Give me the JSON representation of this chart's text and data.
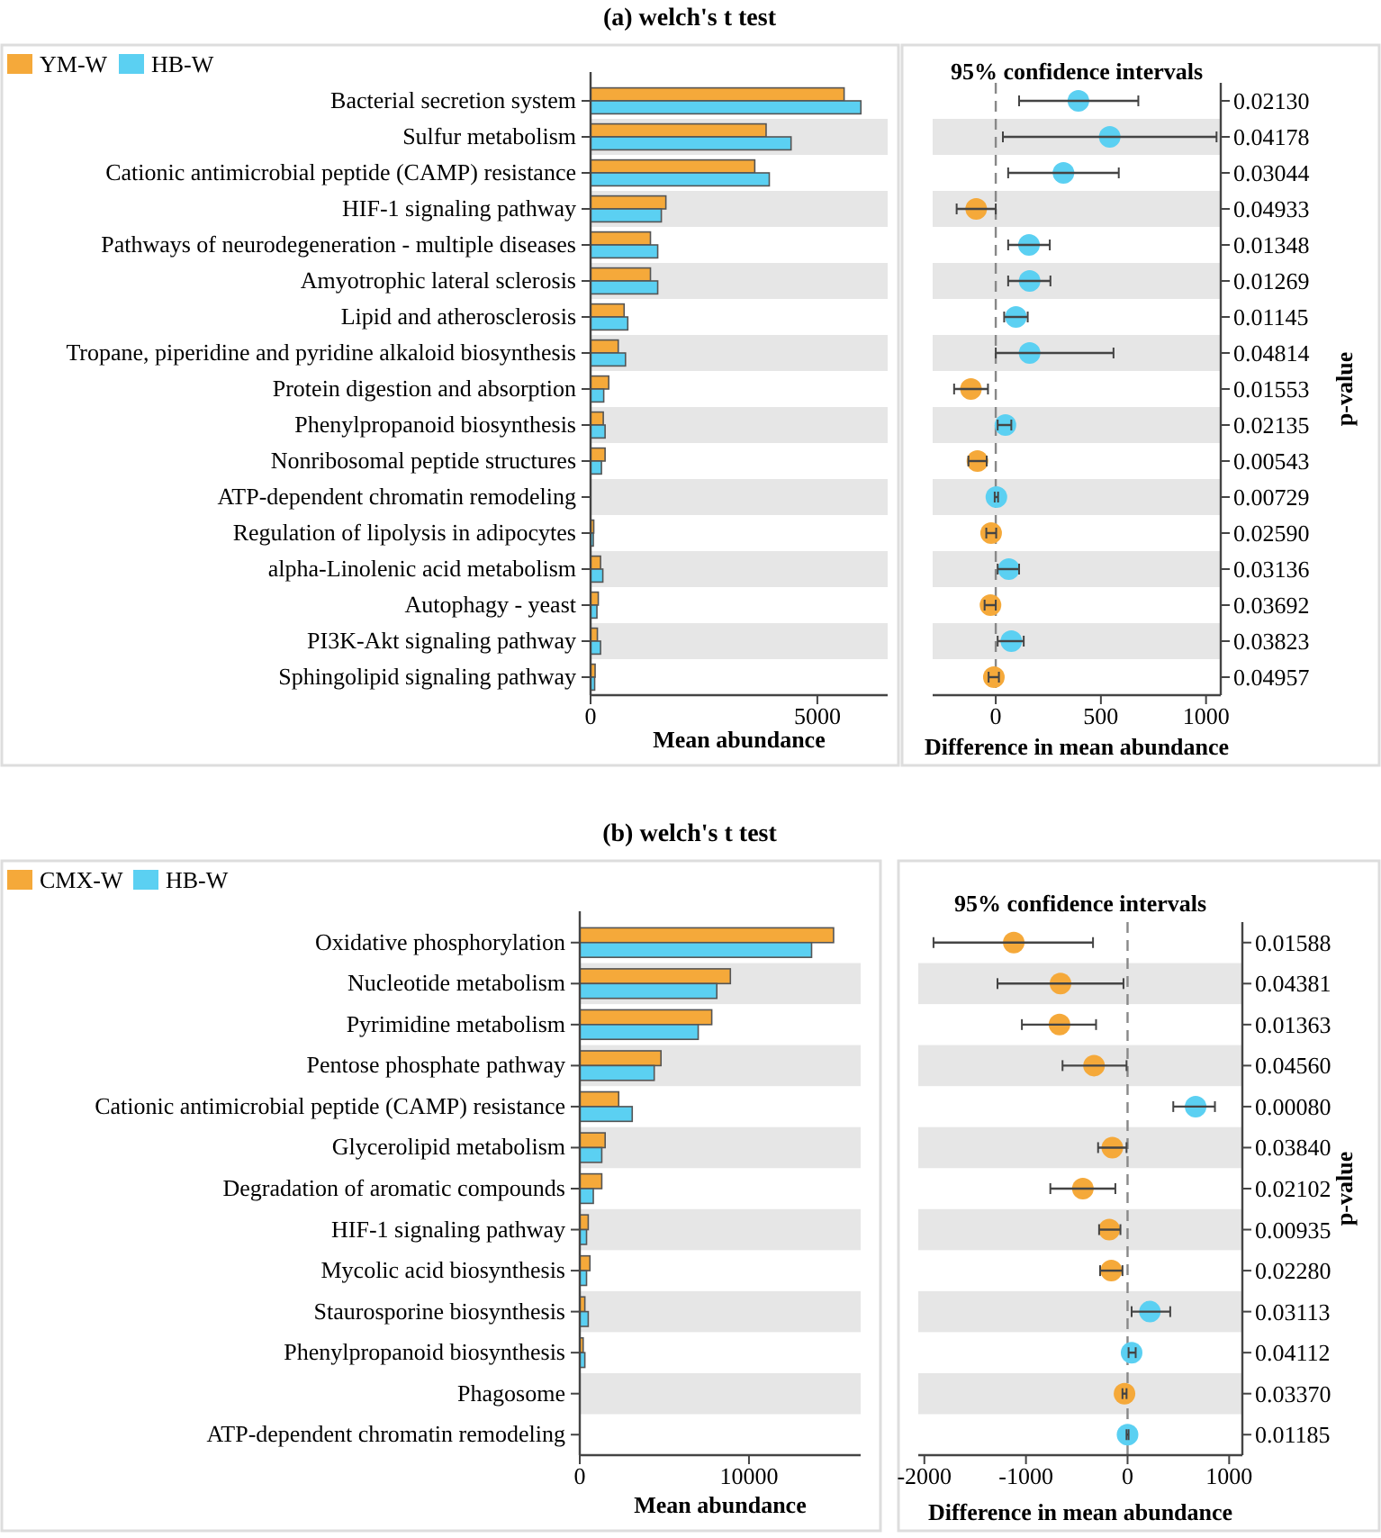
{
  "chart_data": [
    {
      "type": "bar",
      "orientation": "horizontal",
      "title": "(a) welch's t test",
      "xlabel": "Mean abundance",
      "legend": "top left",
      "grid": false,
      "categories": [
        "Bacterial secretion system",
        "Sulfur metabolism",
        "Cationic antimicrobial peptide (CAMP) resistance",
        "HIF-1 signaling pathway",
        "Pathways of neurodegeneration - multiple diseases",
        "Amyotrophic lateral sclerosis",
        "Lipid and atherosclerosis",
        "Tropane, piperidine and pyridine alkaloid biosynthesis",
        "Protein digestion and absorption",
        "Phenylpropanoid biosynthesis",
        "Nonribosomal peptide structures",
        "ATP-dependent chromatin remodeling",
        "Regulation of lipolysis in adipocytes",
        "alpha-Linolenic acid metabolism",
        "Autophagy - yeast",
        "PI3K-Akt signaling pathway",
        "Sphingolipid signaling pathway"
      ],
      "series": [
        {
          "name": "YM-W",
          "color": "#f5a93a",
          "values": [
            5590,
            3870,
            3620,
            1660,
            1320,
            1320,
            740,
            610,
            400,
            280,
            320,
            0,
            70,
            220,
            170,
            150,
            100
          ]
        },
        {
          "name": "HB-W",
          "color": "#5bd0f2",
          "values": [
            5960,
            4420,
            3940,
            1560,
            1480,
            1480,
            820,
            770,
            290,
            320,
            240,
            0,
            60,
            270,
            140,
            220,
            90
          ]
        }
      ],
      "xlim": [
        0,
        6550
      ],
      "xticks": [
        0,
        5000
      ]
    },
    {
      "type": "scatter",
      "orientation": "horizontal",
      "title": "95% confidence intervals",
      "xlabel": "Difference in mean abundance",
      "y2label": "p-value",
      "marker": "circle",
      "tick_labels": "x",
      "categories": [
        null,
        null,
        null,
        null,
        null,
        null,
        null,
        null,
        null,
        null,
        null,
        null,
        null,
        null,
        null,
        null,
        null
      ],
      "values": [
        393,
        542,
        322,
        -93,
        158,
        161,
        96,
        161,
        -118,
        46,
        -87,
        3,
        -22,
        62,
        -25,
        74,
        -9
      ],
      "colors": [
        "#5bd0f2",
        "#5bd0f2",
        "#5bd0f2",
        "#f5a93a",
        "#5bd0f2",
        "#5bd0f2",
        "#5bd0f2",
        "#5bd0f2",
        "#f5a93a",
        "#5bd0f2",
        "#f5a93a",
        "#5bd0f2",
        "#f5a93a",
        "#5bd0f2",
        "#f5a93a",
        "#5bd0f2",
        "#f5a93a"
      ],
      "errors": [
        [
          111,
          678
        ],
        [
          34,
          1050
        ],
        [
          59,
          585
        ],
        [
          -186,
          0
        ],
        [
          59,
          257
        ],
        [
          59,
          260
        ],
        [
          40,
          152
        ],
        [
          0,
          560
        ],
        [
          -198,
          -37
        ],
        [
          9,
          74
        ],
        [
          -130,
          -43
        ],
        [
          -5,
          11
        ],
        [
          -45,
          2
        ],
        [
          9,
          111
        ],
        [
          -53,
          0
        ],
        [
          9,
          133
        ],
        [
          -34,
          15
        ]
      ],
      "ref_lines": [
        {
          "axis": "x",
          "value": 0,
          "color": "#888888",
          "line_style": "dashed"
        }
      ],
      "annotations": [
        "0.02130",
        "0.04178",
        "0.03044",
        "0.04933",
        "0.01348",
        "0.01269",
        "0.01145",
        "0.04814",
        "0.01553",
        "0.02135",
        "0.00543",
        "0.00729",
        "0.02590",
        "0.03136",
        "0.03692",
        "0.03823",
        "0.04957"
      ],
      "xlim": [
        -300,
        1070
      ],
      "xticks": [
        0,
        500,
        1000
      ]
    },
    {
      "type": "bar",
      "orientation": "horizontal",
      "title": "(b) welch's t test",
      "xlabel": "Mean abundance",
      "legend": "top left",
      "grid": false,
      "categories": [
        "Oxidative phosphorylation",
        "Nucleotide metabolism",
        "Pyrimidine metabolism",
        "Pentose phosphate pathway",
        "Cationic antimicrobial peptide (CAMP) resistance",
        "Glycerolipid metabolism",
        "Degradation of aromatic compounds",
        "HIF-1 signaling pathway",
        "Mycolic acid biosynthesis",
        "Staurosporine biosynthesis",
        "Phenylpropanoid biosynthesis",
        "Phagosome",
        "ATP-dependent chromatin remodeling"
      ],
      "series": [
        {
          "name": "CMX-W",
          "color": "#f5a93a",
          "values": [
            15000,
            8900,
            7800,
            4800,
            2300,
            1500,
            1300,
            500,
            600,
            300,
            200,
            0,
            0
          ]
        },
        {
          "name": "HB-W",
          "color": "#5bd0f2",
          "values": [
            13700,
            8100,
            7000,
            4400,
            3100,
            1300,
            800,
            400,
            400,
            500,
            300,
            0,
            0
          ]
        }
      ],
      "xlim": [
        0,
        16600
      ],
      "xticks": [
        0,
        10000
      ]
    },
    {
      "type": "scatter",
      "orientation": "horizontal",
      "title": "95% confidence intervals",
      "xlabel": "Difference in mean abundance",
      "y2label": "p-value",
      "marker": "circle",
      "tick_labels": "x",
      "categories": [
        null,
        null,
        null,
        null,
        null,
        null,
        null,
        null,
        null,
        null,
        null,
        null,
        null
      ],
      "values": [
        -1120,
        -660,
        -670,
        -330,
        670,
        -150,
        -440,
        -180,
        -160,
        220,
        40,
        -30,
        0
      ],
      "colors": [
        "#f5a93a",
        "#f5a93a",
        "#f5a93a",
        "#f5a93a",
        "#5bd0f2",
        "#f5a93a",
        "#f5a93a",
        "#f5a93a",
        "#f5a93a",
        "#5bd0f2",
        "#5bd0f2",
        "#f5a93a",
        "#5bd0f2"
      ],
      "errors": [
        [
          -1910,
          -340
        ],
        [
          -1280,
          -40
        ],
        [
          -1040,
          -310
        ],
        [
          -640,
          -10
        ],
        [
          450,
          860
        ],
        [
          -290,
          -10
        ],
        [
          -760,
          -120
        ],
        [
          -280,
          -70
        ],
        [
          -270,
          -50
        ],
        [
          40,
          420
        ],
        [
          10,
          80
        ],
        [
          -50,
          -10
        ],
        [
          -10,
          10
        ]
      ],
      "ref_lines": [
        {
          "axis": "x",
          "value": 0,
          "color": "#888888",
          "line_style": "dashed"
        }
      ],
      "annotations": [
        "0.01588",
        "0.04381",
        "0.01363",
        "0.04560",
        "0.00080",
        "0.03840",
        "0.02102",
        "0.00935",
        "0.02280",
        "0.03113",
        "0.04112",
        "0.03370",
        "0.01185"
      ],
      "xlim": [
        -2060,
        1130
      ],
      "xticks": [
        -2000,
        -1000,
        0,
        1000
      ]
    }
  ]
}
